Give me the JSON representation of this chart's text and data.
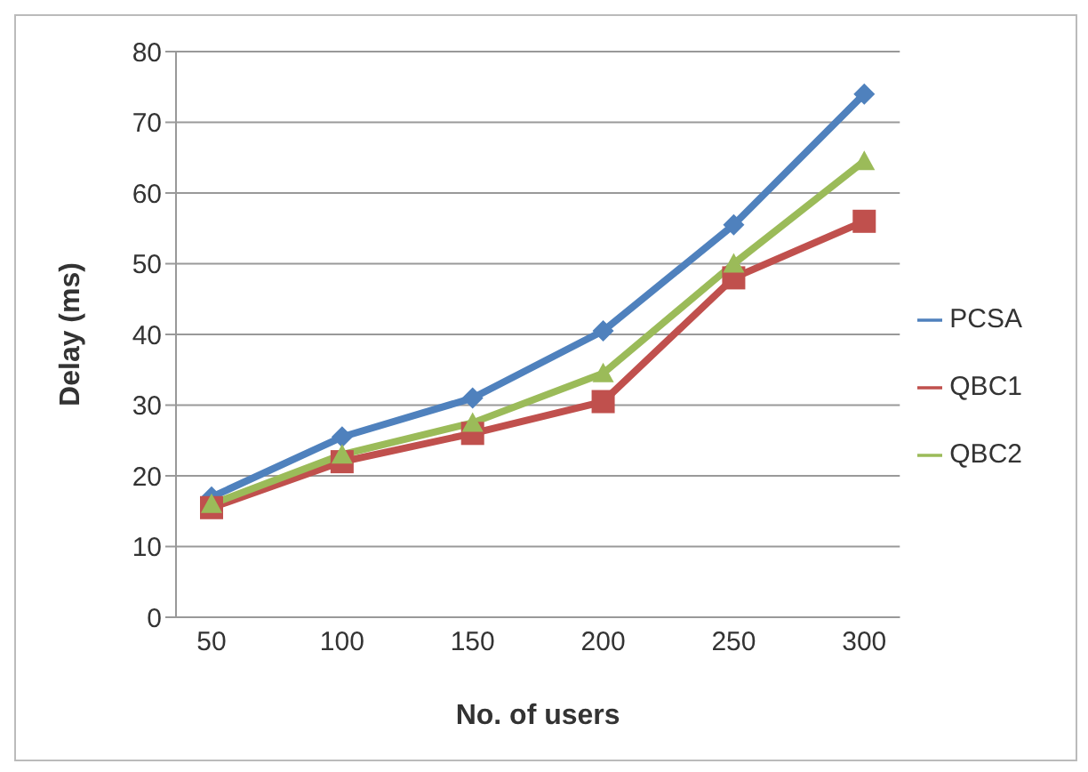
{
  "chart_data": {
    "type": "line",
    "xlabel": "No. of users",
    "ylabel": "Delay (ms)",
    "categories": [
      "50",
      "100",
      "150",
      "200",
      "250",
      "300"
    ],
    "series": [
      {
        "name": "PCSA",
        "color": "#4f81bd",
        "marker": "diamond",
        "values": [
          17,
          25.5,
          31,
          40.5,
          55.5,
          74
        ]
      },
      {
        "name": "QBC1",
        "color": "#c0504d",
        "marker": "square",
        "values": [
          15.5,
          22,
          26,
          30.5,
          48,
          56
        ]
      },
      {
        "name": "QBC2",
        "color": "#9bbb59",
        "marker": "triangle",
        "values": [
          16,
          23,
          27.5,
          34.5,
          50,
          64.5
        ]
      }
    ],
    "ylim": [
      0,
      80
    ],
    "yticks": [
      0,
      10,
      20,
      30,
      40,
      50,
      60,
      70,
      80
    ],
    "grid": "y",
    "legend": "right"
  }
}
